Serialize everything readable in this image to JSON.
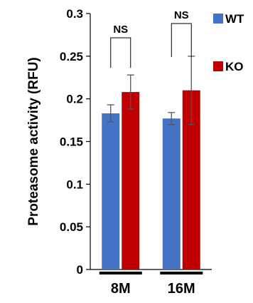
{
  "chart_data": {
    "type": "bar",
    "ylabel": "Proteasome activity (RFU)",
    "ylim": [
      0,
      0.3
    ],
    "yticks": [
      "0",
      "0.05",
      "0.1",
      "0.15",
      "0.2",
      "0.25",
      "0.3"
    ],
    "categories": [
      "8M",
      "16M"
    ],
    "series": [
      {
        "name": "WT",
        "color": "#4472C4",
        "values": [
          0.183,
          0.177
        ],
        "errors": [
          0.01,
          0.007
        ]
      },
      {
        "name": "KO",
        "color": "#C00000",
        "values": [
          0.208,
          0.21
        ],
        "errors": [
          0.02,
          0.04
        ]
      }
    ],
    "annotations": [
      "NS",
      "NS"
    ],
    "legend_position": "right"
  }
}
